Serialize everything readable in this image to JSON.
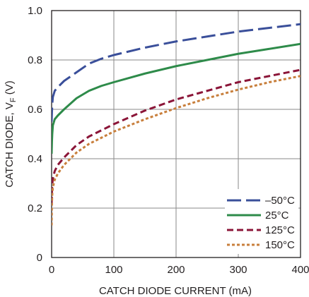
{
  "chart_data": {
    "type": "line",
    "xlabel": "CATCH DIODE CURRENT (mA)",
    "ylabel": "CATCH DIODE, V",
    "ylabel_subscript": "F",
    "ylabel_unit": " (V)",
    "xlim": [
      0,
      400
    ],
    "ylim": [
      0,
      1.0
    ],
    "x_ticks": [
      0,
      100,
      200,
      300,
      400
    ],
    "x_tick_labels": [
      "0",
      "100",
      "200",
      "300",
      "400"
    ],
    "y_ticks": [
      0,
      0.2,
      0.4,
      0.6,
      0.8,
      1.0
    ],
    "y_tick_labels": [
      "0",
      "0.2",
      "0.4",
      "0.6",
      "0.8",
      "1.0"
    ],
    "grid": true,
    "legend_position": "bottom-right",
    "series": [
      {
        "name": "–50°C",
        "color": "#3a4f9a",
        "dash": "long-dash",
        "x": [
          0,
          0.5,
          1,
          2,
          5,
          10,
          20,
          40,
          60,
          80,
          100,
          150,
          200,
          250,
          300,
          350,
          400
        ],
        "y": [
          0.55,
          0.59,
          0.62,
          0.65,
          0.675,
          0.69,
          0.715,
          0.75,
          0.785,
          0.805,
          0.82,
          0.85,
          0.875,
          0.895,
          0.915,
          0.93,
          0.945
        ]
      },
      {
        "name": "25°C",
        "color": "#2e8b4a",
        "dash": "solid",
        "x": [
          0,
          0.5,
          1,
          2,
          5,
          10,
          20,
          40,
          60,
          80,
          100,
          150,
          200,
          250,
          300,
          350,
          400
        ],
        "y": [
          0.42,
          0.47,
          0.5,
          0.535,
          0.56,
          0.575,
          0.6,
          0.645,
          0.675,
          0.695,
          0.71,
          0.745,
          0.775,
          0.8,
          0.825,
          0.845,
          0.865
        ]
      },
      {
        "name": "125°C",
        "color": "#8b1538",
        "dash": "medium-dash",
        "x": [
          0,
          0.5,
          1,
          2,
          5,
          10,
          20,
          40,
          60,
          80,
          100,
          150,
          200,
          250,
          300,
          350,
          400
        ],
        "y": [
          0.22,
          0.27,
          0.295,
          0.32,
          0.35,
          0.375,
          0.405,
          0.455,
          0.49,
          0.515,
          0.54,
          0.595,
          0.64,
          0.675,
          0.71,
          0.735,
          0.76
        ]
      },
      {
        "name": "150°C",
        "color": "#c87f3c",
        "dash": "dotted",
        "x": [
          0,
          0.5,
          1,
          2,
          5,
          10,
          20,
          40,
          60,
          80,
          100,
          150,
          200,
          250,
          300,
          350,
          400
        ],
        "y": [
          0.13,
          0.22,
          0.255,
          0.285,
          0.315,
          0.34,
          0.375,
          0.425,
          0.46,
          0.485,
          0.51,
          0.56,
          0.605,
          0.645,
          0.68,
          0.71,
          0.735
        ]
      }
    ]
  }
}
